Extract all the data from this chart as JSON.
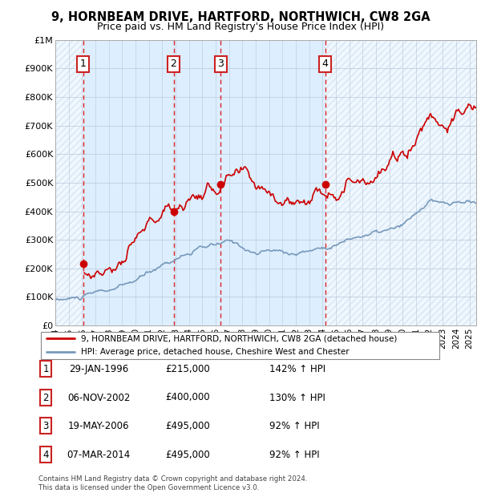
{
  "title": "9, HORNBEAM DRIVE, HARTFORD, NORTHWICH, CW8 2GA",
  "subtitle": "Price paid vs. HM Land Registry's House Price Index (HPI)",
  "transactions": [
    {
      "num": 1,
      "date": "29-JAN-1996",
      "year": 1996.08,
      "price": 215000
    },
    {
      "num": 2,
      "date": "06-NOV-2002",
      "year": 2002.85,
      "price": 400000
    },
    {
      "num": 3,
      "date": "19-MAY-2006",
      "year": 2006.38,
      "price": 495000
    },
    {
      "num": 4,
      "date": "07-MAR-2014",
      "year": 2014.19,
      "price": 495000
    }
  ],
  "hpi_label": "HPI: Average price, detached house, Cheshire West and Chester",
  "prop_label": "9, HORNBEAM DRIVE, HARTFORD, NORTHWICH, CW8 2GA (detached house)",
  "footnote": "Contains HM Land Registry data © Crown copyright and database right 2024.\nThis data is licensed under the Open Government Licence v3.0.",
  "table_rows": [
    {
      "num": 1,
      "date": "29-JAN-1996",
      "price": "£215,000",
      "hpi": "142% ↑ HPI"
    },
    {
      "num": 2,
      "date": "06-NOV-2002",
      "price": "£400,000",
      "hpi": "130% ↑ HPI"
    },
    {
      "num": 3,
      "date": "19-MAY-2006",
      "price": "£495,000",
      "hpi": "92% ↑ HPI"
    },
    {
      "num": 4,
      "date": "07-MAR-2014",
      "price": "£495,000",
      "hpi": "92% ↑ HPI"
    }
  ],
  "ylim": [
    0,
    1000000
  ],
  "xlim_start": 1994.0,
  "xlim_end": 2025.5,
  "yticks": [
    0,
    100000,
    200000,
    300000,
    400000,
    500000,
    600000,
    700000,
    800000,
    900000,
    1000000
  ],
  "ytick_labels": [
    "£0",
    "£100K",
    "£200K",
    "£300K",
    "£400K",
    "£500K",
    "£600K",
    "£700K",
    "£800K",
    "£900K",
    "£1M"
  ],
  "xticks": [
    1994,
    1995,
    1996,
    1997,
    1998,
    1999,
    2000,
    2001,
    2002,
    2003,
    2004,
    2005,
    2006,
    2007,
    2008,
    2009,
    2010,
    2011,
    2012,
    2013,
    2014,
    2015,
    2016,
    2017,
    2018,
    2019,
    2020,
    2021,
    2022,
    2023,
    2024,
    2025
  ],
  "bg_color": "#ddeeff",
  "hatch_color": "#c8d8e8",
  "plot_line_color": "#cc0000",
  "hpi_line_color": "#7799bb",
  "grid_color": "#bbccdd",
  "vline_color": "#dd0000",
  "marker_color": "#cc0000",
  "label_box_color": "#cc2222",
  "hpi_seed_values": {
    "1994.0": 88000,
    "1995.0": 91000,
    "1996.0": 96000,
    "1997.0": 108000,
    "1998.0": 118000,
    "1999.0": 130000,
    "2000.0": 150000,
    "2001.0": 178000,
    "2002.0": 210000,
    "2003.0": 235000,
    "2004.0": 255000,
    "2005.0": 268000,
    "2006.0": 275000,
    "2007.0": 285000,
    "2008.0": 272000,
    "2009.0": 250000,
    "2010.0": 258000,
    "2011.0": 255000,
    "2012.0": 252000,
    "2013.0": 262000,
    "2014.0": 275000,
    "2015.0": 290000,
    "2016.0": 305000,
    "2017.0": 318000,
    "2018.0": 325000,
    "2019.0": 330000,
    "2020.0": 340000,
    "2021.0": 380000,
    "2022.0": 430000,
    "2023.0": 415000,
    "2024.0": 420000,
    "2025.0": 425000
  }
}
